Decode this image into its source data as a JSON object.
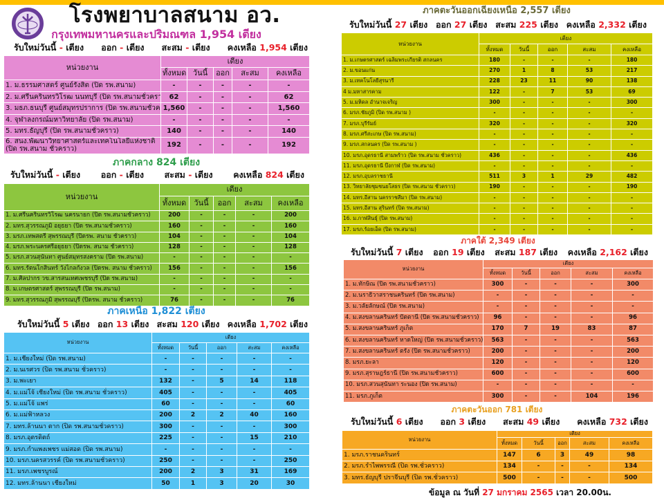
{
  "header": {
    "title": "โรงพยาบาลสนาม อว.",
    "logo_icon": "university-ministry-seal-icon"
  },
  "labels": {
    "new_today": "รับใหม่วันนี้",
    "out": "ออก",
    "accumulated": "สะสม",
    "remaining": "คงเหลือ",
    "unit": "เตียง",
    "col_unit": "หน่วยงาน",
    "col_beds": "เตียง",
    "col_total": "ทั้งหมด",
    "col_today": "วันนี้",
    "col_out": "ออก",
    "col_acc": "สะสม",
    "col_remain": "คงเหลือ"
  },
  "colors": {
    "top_band": "#ffc000",
    "highlight_number": "#e8202a"
  },
  "sections": [
    {
      "title": "กรุงเทพมหานครและปริมณฑล  1,954 เตียง",
      "title_color": "#c2309f",
      "table_color": "#e58bd3",
      "summary": {
        "new": "-",
        "out": "-",
        "acc": "-",
        "remain": "1,954"
      },
      "rows": [
        [
          "1. ม.ธรรมศาสตร์ ศูนย์รังสิต (ปิด รพ.สนาม)",
          "-",
          "-",
          "-",
          "-",
          "-"
        ],
        [
          "2. ม.ศรีนครินทรวิโรฒ นนทบุรี (ปิด รพ.สนามชั่วคราว)",
          "62",
          "-",
          "-",
          "-",
          "62"
        ],
        [
          "3. มธภ.ธนบุรี ศูนย์สมุทรปราการ (ปิด รพ.สนามชั่วคราว)",
          "1,560",
          "-",
          "-",
          "-",
          "1,560"
        ],
        [
          "4. จุฬาลงกรณ์มหาวิทยาลัย  (ปิด รพ.สนาม)",
          "-",
          "-",
          "-",
          "-",
          "-"
        ],
        [
          "5. มทร.ธัญบุรี (ปิด รพ.สนามชั่วคราว)",
          "140",
          "-",
          "-",
          "-",
          "140"
        ],
        [
          "6. สนง.พัฒนาวิทยาศาสตร์และเทคโนโลยีแห่งชาติ\n(ปิด รพ.สนาม ชั่วคราว)",
          "192",
          "-",
          "-",
          "-",
          "192"
        ]
      ]
    },
    {
      "title": "ภาคกลาง  824 เตียง",
      "title_color": "#2f9e4c",
      "table_color": "#8dc63f",
      "summary": {
        "new": "-",
        "out": "-",
        "acc": "-",
        "remain": "824"
      },
      "rows": [
        [
          "1. ม.ศรีนครินทรวิโรฒ นครนายก  (ปิด รพ.สนามชั่วคราว)",
          "200",
          "-",
          "-",
          "-",
          "200"
        ],
        [
          "2. มทร.สุวรรณภูมิ อยุธยา  (ปิด รพ.สนามชั่วคราว)",
          "160",
          "-",
          "-",
          "-",
          "160"
        ],
        [
          "3. มรภ.เทพสตรี สุพรรณบุรี (ปิดรพ. สนาม ชั่วคราว)",
          "104",
          "-",
          "-",
          "-",
          "104"
        ],
        [
          "4. มรภ.พระนครศรีอยุธยา  (ปิดรพ. สนาม ชั่วคราว)",
          "128",
          "-",
          "-",
          "-",
          "128"
        ],
        [
          "5. มรภ.สวนสุนันทา ศูนย์สมุทรสงคราม  (ปิด รพ.สนาม)",
          "-",
          "-",
          "-",
          "-",
          "-"
        ],
        [
          "6. มทร.รัตนโกสินทร์ วังไกลกังวล (ปิดรพ. สนาม ชั่วคราว)",
          "156",
          "-",
          "-",
          "-",
          "156"
        ],
        [
          "7. ม.ศิลปากร วข.สารสนเทศเพชรบุรี (ปิด รพ.สนาม)",
          "-",
          "-",
          "-",
          "-",
          "-"
        ],
        [
          "8. ม.เกษตรศาสตร์ สุพรรณบุรี (ปิด รพ.สนาม)",
          "-",
          "-",
          "-",
          "-",
          "-"
        ],
        [
          "9. มทร.สุวรรณภูมิ สุพรรณบุรี (ปิดรพ. สนาม ชั่วคราว)",
          "76",
          "-",
          "-",
          "-",
          "76"
        ]
      ]
    },
    {
      "title": "ภาคเหนือ  1,822 เตียง",
      "title_color": "#1f8fd6",
      "table_color": "#55c3f3",
      "summary": {
        "new": "5",
        "out": "13",
        "acc": "120",
        "remain": "1,702"
      },
      "rows": [
        [
          "1. ม.เชียงใหม่  (ปิด รพ.สนาม)",
          "-",
          "-",
          "-",
          "-",
          "-"
        ],
        [
          "2. ม.นเรศวร (ปิด รพ.สนาม ชั่วคราว)",
          "-",
          "-",
          "-",
          "-",
          "-"
        ],
        [
          "3. ม.พะเยา",
          "132",
          "-",
          "5",
          "14",
          "118"
        ],
        [
          "4. ม.แม่โจ้ เชียงใหม่ (ปิด รพ.สนาม ชั่วคราว)",
          "405",
          "-",
          "-",
          "-",
          "405"
        ],
        [
          "5. ม.แม่โจ้ แพร่",
          "60",
          "-",
          "-",
          "-",
          "60"
        ],
        [
          "6. ม.แม่ฟ้าหลวง",
          "200",
          "2",
          "2",
          "40",
          "160"
        ],
        [
          "7. มทร.ล้านนา ตาก  (ปิด รพ.สนามชั่วคราว)",
          "300",
          "-",
          "-",
          "-",
          "300"
        ],
        [
          "8. มรภ.อุตรดิตถ์",
          "225",
          "-",
          "-",
          "15",
          "210"
        ],
        [
          "9. มรภ.กำแพงเพชร แม่สอด (ปิด รพ.สนาม)",
          "-",
          "-",
          "-",
          "-",
          "-"
        ],
        [
          "10. มรภ.นครสวรรค์ (ปิด รพ.สนามชั่วคราว)",
          "250",
          "-",
          "-",
          "-",
          "250"
        ],
        [
          "11. มรภ.เพชรบูรณ์",
          "200",
          "2",
          "3",
          "31",
          "169"
        ],
        [
          "12. มทร.ล้านนา เชียงใหม่",
          "50",
          "1",
          "3",
          "20",
          "30"
        ]
      ]
    },
    {
      "title": "ภาคตะวันออกเฉียงเหนือ  2,557 เตียง",
      "title_color": "#6b6b3a",
      "table_color": "#cccc00",
      "summary": {
        "new": "27",
        "out": "27",
        "acc": "225",
        "remain": "2,332"
      },
      "rows": [
        [
          "1. ม.เกษตรศาสตร์ เฉลิมพระเกียรติ สกลนคร",
          "180",
          "-",
          "-",
          "-",
          "180"
        ],
        [
          "2. ม.ขอนแก่น",
          "270",
          "1",
          "8",
          "53",
          "217"
        ],
        [
          "3. ม.เทคโนโลยีสุรนารี",
          "228",
          "23",
          "11",
          "90",
          "138"
        ],
        [
          "4 ม.มหาสารคาม",
          "122",
          "-",
          "7",
          "53",
          "69"
        ],
        [
          "5. ม.มหิดล อำนาจเจริญ",
          "300",
          "-",
          "-",
          "-",
          "300"
        ],
        [
          "6. มรภ.ชัยภูมิ   (ปิด รพ.สนาม )",
          "-",
          "-",
          "-",
          "-",
          "-"
        ],
        [
          "7. มรภ.บุรีรัมย์",
          "320",
          "-",
          "-",
          "-",
          "320"
        ],
        [
          "8. มรภ.ศรีสะเกษ  (ปิด รพ.สนาม)",
          "-",
          "-",
          "-",
          "-",
          "-"
        ],
        [
          "9. มรภ.สกลนคร  (ปิด รพ.สนาม )",
          "-",
          "-",
          "-",
          "-",
          "-"
        ],
        [
          "10. มรภ.อุดรธานี  สามพร้าว (ปิด รพ.สนาม ชั่วคราว)",
          "436",
          "-",
          "-",
          "-",
          "436"
        ],
        [
          "11. มรภ.อุดรธานี  บึงกาฬ (ปิด รพ.สนาม)",
          "-",
          "-",
          "-",
          "-",
          "-"
        ],
        [
          "12. มรภ.อุบลราชธานี",
          "511",
          "3",
          "1",
          "29",
          "482"
        ],
        [
          "13. วิทยาลัยชุมชนยโสธร  (ปิด รพ.สนาม ชั่วคราว)",
          "190",
          "-",
          "-",
          "-",
          "190"
        ],
        [
          "14. มทร.อีสาน  นครราชสีมา  (ปิด รพ.สนาม)",
          "-",
          "-",
          "-",
          "-",
          "-"
        ],
        [
          "15. มทร.อีสาน  สุรินทร์ (ปิด รพ.สนาม)",
          "-",
          "-",
          "-",
          "-",
          "-"
        ],
        [
          "16. ม.กาฬสินธุ์  (ปิด รพ.สนาม)",
          "-",
          "-",
          "-",
          "-",
          "-"
        ],
        [
          "17. มรภ.ร้อยเอ็ด  (ปิด รพ.สนาม)",
          "-",
          "-",
          "-",
          "-",
          "-"
        ]
      ]
    },
    {
      "title": "ภาคใต้ 2,349 เตียง",
      "title_color": "#e8473a",
      "table_color": "#f28a68",
      "summary": {
        "new": "7",
        "out": "19",
        "acc": "187",
        "remain": "2,162"
      },
      "rows": [
        [
          "1. ม.ทักษิณ (ปิด รพ.สนามชั่วคราว)",
          "300",
          "-",
          "-",
          "-",
          "300"
        ],
        [
          "2. ม.นราธิวาสราชนครินทร์ (ปิด รพ.สนาม)",
          "-",
          "-",
          "-",
          "-",
          "-"
        ],
        [
          "3. ม.วลัยลักษณ์ (ปิด รพ.สนาม)",
          "-",
          "-",
          "-",
          "-",
          "-"
        ],
        [
          "4. ม.สงขลานครินทร์ ปัตตานี (ปิด รพ.สนามชั่วคราว)",
          "96",
          "-",
          "-",
          "-",
          "96"
        ],
        [
          "5. ม.สงขลานครินทร์ ภูเก็ต",
          "170",
          "7",
          "19",
          "83",
          "87"
        ],
        [
          "6. ม.สงขลานครินทร์ หาดใหญ่ (ปิด รพ.สนามชั่วคราว)",
          "563",
          "-",
          "-",
          "-",
          "563"
        ],
        [
          "7. ม.สงขลานครินทร์ ตรัง  (ปิด รพ.สนามชั่วคราว)",
          "200",
          "-",
          "-",
          "-",
          "200"
        ],
        [
          "8. มรภ.ยะลา",
          "120",
          "-",
          "-",
          "-",
          "120"
        ],
        [
          "9. มรภ.สุราษฎร์ธานี  (ปิด รพ.สนามชั่วคราว)",
          "600",
          "-",
          "-",
          "-",
          "600"
        ],
        [
          "10. มรภ.สวนสุนันทา ระนอง (ปิด รพ.สนาม)",
          "-",
          "-",
          "-",
          "-",
          "-"
        ],
        [
          "11. มรภ.ภูเก็ต",
          "300",
          "-",
          "-",
          "104",
          "196"
        ]
      ]
    },
    {
      "title": "ภาคตะวันออก 781  เตียง",
      "title_color": "#e8a020",
      "table_color": "#f7a823",
      "summary": {
        "new": "6",
        "out": "3",
        "acc": "49",
        "remain": "732"
      },
      "rows": [
        [
          "1. มรภ.ราชนครินทร์",
          "147",
          "6",
          "3",
          "49",
          "98"
        ],
        [
          "2. มรภ.รำไพพรรณี (ปิด รพ.ชั่วคราว)",
          "134",
          "-",
          "-",
          "-",
          "134"
        ],
        [
          "3. มทร.ธัญบุรี  ปราจีนบุรี  (ปิด รพ.ชั่วคราว)",
          "500",
          "-",
          "-",
          "-",
          "500"
        ]
      ]
    }
  ],
  "footer": {
    "prefix": "ข้อมูล ณ วันที่",
    "date": "27  มกราคม 2565",
    "time": "เวลา 20.00น."
  }
}
